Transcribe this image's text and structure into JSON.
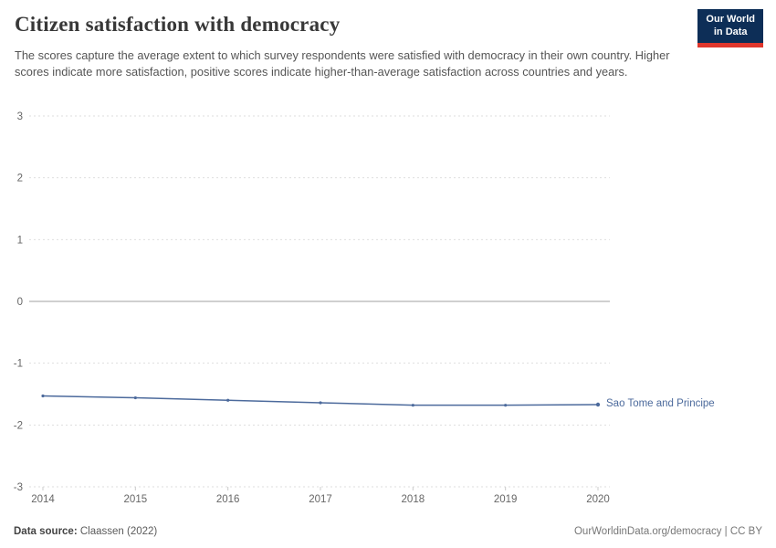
{
  "header": {
    "title": "Citizen satisfaction with democracy",
    "subtitle": "The scores capture the average extent to which survey respondents were satisfied with democracy in their own country. Higher scores indicate more satisfaction, positive scores indicate higher-than-average satisfaction across countries and years."
  },
  "logo": {
    "line1": "Our World",
    "line2": "in Data"
  },
  "footer": {
    "source_label": "Data source:",
    "source_value": " Claassen (2022)",
    "right": "OurWorldinData.org/democracy | CC BY"
  },
  "colors": {
    "accent": "#4C6A9C",
    "grid": "#dedede",
    "zero_line": "#a0a0a0",
    "tick_text": "#666666",
    "axis_tick": "#cccccc",
    "logo_bg": "#0d2e57",
    "logo_red": "#e0362c"
  },
  "chart_data": {
    "type": "line",
    "title": "Citizen satisfaction with democracy",
    "x": [
      2014,
      2015,
      2016,
      2017,
      2018,
      2019,
      2020
    ],
    "xticklabels": [
      "2014",
      "2015",
      "2016",
      "2017",
      "2018",
      "2019",
      "2020"
    ],
    "series": [
      {
        "name": "Sao Tome and Principe",
        "color": "#4C6A9C",
        "values": [
          -1.53,
          -1.56,
          -1.6,
          -1.64,
          -1.68,
          -1.68,
          -1.67
        ]
      }
    ],
    "ylim": [
      -3,
      3
    ],
    "yticks": [
      3,
      2,
      1,
      0,
      -1,
      -2,
      -3
    ],
    "grid": "horizontal-dashed",
    "zero_line": true,
    "legend_position": "right-of-line-end"
  }
}
